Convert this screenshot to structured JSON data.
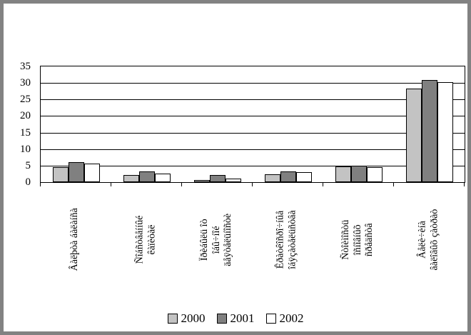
{
  "chart_data": {
    "type": "bar",
    "title": "",
    "xlabel": "",
    "ylabel": "",
    "categories": [
      "Âàëþòà áàëàíñà",
      "Ñîáñòâåííûé\nêàïèòàë",
      "Ïðèáûëü îò\nîáû÷íîé\näåÿòåëüíîñòè",
      "Êðàòêîñðî÷íûå\nîáÿçàòåëüñòâà",
      "Ñòîèìîñòü\nîñíîâíûõ\nñðåäñòâ",
      "Âåëè÷èíà\nâàëîâûõ çàòðàò"
    ],
    "series": [
      {
        "name": "2000",
        "color": "#c3c3c3",
        "values": [
          4.5,
          2.2,
          0.7,
          2.4,
          4.7,
          28.2
        ]
      },
      {
        "name": "2001",
        "color": "#808080",
        "values": [
          6.0,
          3.2,
          2.1,
          3.3,
          5.0,
          31.0
        ]
      },
      {
        "name": "2002",
        "color": "#ffffff",
        "values": [
          5.7,
          2.7,
          1.0,
          3.0,
          4.5,
          30.3
        ]
      }
    ],
    "ylim": [
      0,
      35
    ],
    "yticks": [
      0,
      5,
      10,
      15,
      20,
      25,
      30,
      35
    ],
    "grid": true,
    "legend_position": "bottom"
  },
  "colors": {
    "frame": "#828282",
    "axis": "#000000",
    "background": "#ffffff"
  }
}
